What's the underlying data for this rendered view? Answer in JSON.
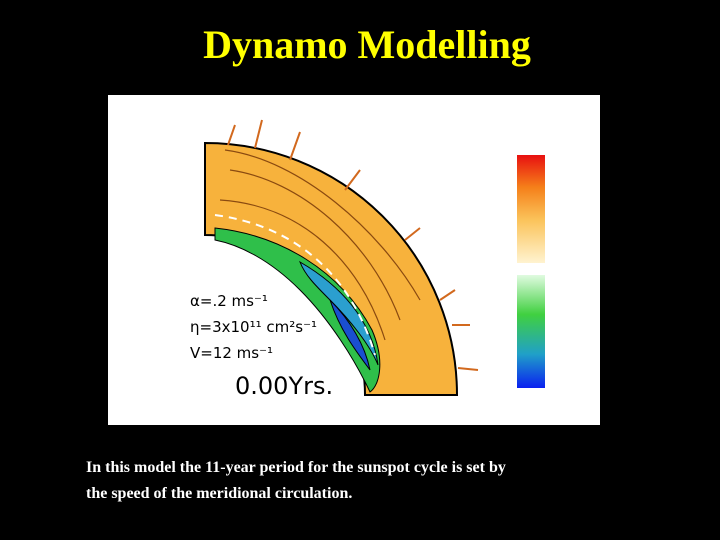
{
  "header": {
    "title": "Dynamo Modelling"
  },
  "figure": {
    "alpha": "α=.2 ms⁻¹",
    "eta": "η=3x10¹¹ cm²s⁻¹",
    "velocity": "V=12 ms⁻¹",
    "time": "0.00Yrs."
  },
  "caption": {
    "lines": [
      "In this model the 11-year period for the sunspot cycle is set by",
      "the speed of the meridional circulation."
    ]
  }
}
